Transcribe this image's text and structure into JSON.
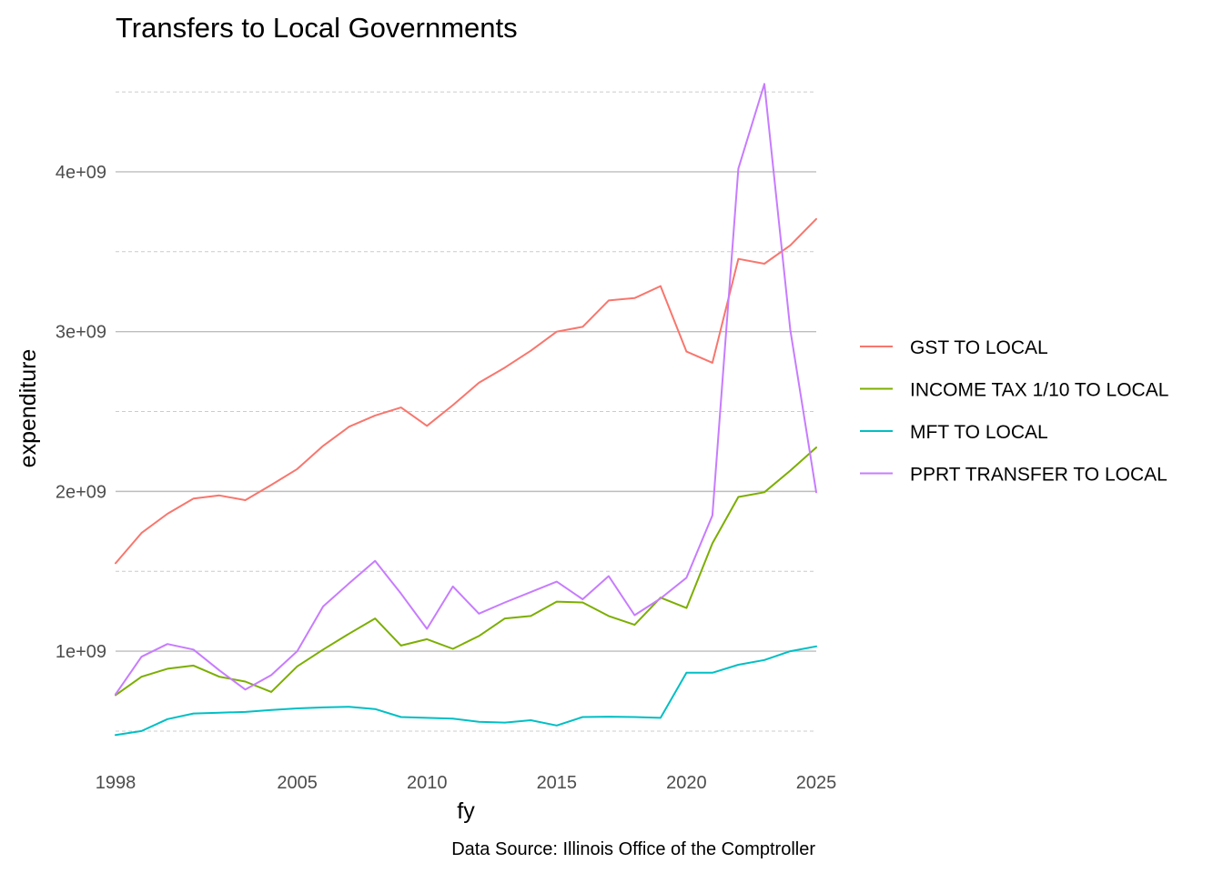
{
  "chart_data": {
    "type": "line",
    "title": "Transfers to Local Governments",
    "xlabel": "fy",
    "ylabel": "expenditure",
    "caption": "Data Source: Illinois Office of the Comptroller",
    "xlim": [
      1998,
      2025
    ],
    "ylim": [
      420000000,
      4620000000
    ],
    "x_ticks": [
      1998,
      2005,
      2010,
      2015,
      2020,
      2025
    ],
    "x_tick_labels": [
      "1998",
      "2005",
      "2010",
      "2015",
      "2020",
      "2025"
    ],
    "y_major_ticks": [
      1000000000,
      2000000000,
      3000000000,
      4000000000
    ],
    "y_tick_labels": [
      "1e+09",
      "2e+09",
      "3e+09",
      "4e+09"
    ],
    "y_minor_ticks": [
      500000000,
      1500000000,
      2500000000,
      3500000000,
      4500000000
    ],
    "grid": true,
    "legend_position": "right",
    "x": [
      1998,
      1999,
      2000,
      2001,
      2002,
      2003,
      2004,
      2005,
      2006,
      2007,
      2008,
      2009,
      2010,
      2011,
      2012,
      2013,
      2014,
      2015,
      2016,
      2017,
      2018,
      2019,
      2020,
      2021,
      2022,
      2023,
      2024,
      2025
    ],
    "series": [
      {
        "name": "GST TO LOCAL",
        "color": "#F8766D",
        "values": [
          1550000000,
          1740000000,
          1860000000,
          1955000000,
          1975000000,
          1945000000,
          2040000000,
          2140000000,
          2285000000,
          2405000000,
          2475000000,
          2525000000,
          2410000000,
          2540000000,
          2680000000,
          2775000000,
          2880000000,
          3000000000,
          3030000000,
          3195000000,
          3210000000,
          3285000000,
          2875000000,
          2805000000,
          3455000000,
          3425000000,
          3540000000,
          3705000000
        ]
      },
      {
        "name": "INCOME TAX 1/10 TO LOCAL",
        "color": "#7CAE00",
        "values": [
          725000000,
          840000000,
          890000000,
          910000000,
          840000000,
          810000000,
          745000000,
          905000000,
          1010000000,
          1110000000,
          1205000000,
          1035000000,
          1075000000,
          1015000000,
          1095000000,
          1205000000,
          1220000000,
          1310000000,
          1305000000,
          1220000000,
          1165000000,
          1335000000,
          1270000000,
          1675000000,
          1965000000,
          1995000000,
          2130000000,
          2275000000
        ]
      },
      {
        "name": "MFT TO LOCAL",
        "color": "#00BFC4",
        "values": [
          475000000,
          500000000,
          575000000,
          610000000,
          615000000,
          620000000,
          632000000,
          642000000,
          648000000,
          652000000,
          638000000,
          588000000,
          583000000,
          578000000,
          558000000,
          553000000,
          568000000,
          535000000,
          588000000,
          590000000,
          588000000,
          583000000,
          865000000,
          865000000,
          915000000,
          945000000,
          1000000000,
          1030000000
        ]
      },
      {
        "name": "PPRT TRANSFER TO LOCAL",
        "color": "#C77CFF",
        "values": [
          730000000,
          965000000,
          1045000000,
          1010000000,
          880000000,
          760000000,
          850000000,
          1000000000,
          1280000000,
          1425000000,
          1565000000,
          1360000000,
          1140000000,
          1405000000,
          1235000000,
          1305000000,
          1370000000,
          1435000000,
          1325000000,
          1470000000,
          1225000000,
          1330000000,
          1460000000,
          1850000000,
          4020000000,
          4550000000,
          3010000000,
          1995000000
        ]
      }
    ]
  }
}
